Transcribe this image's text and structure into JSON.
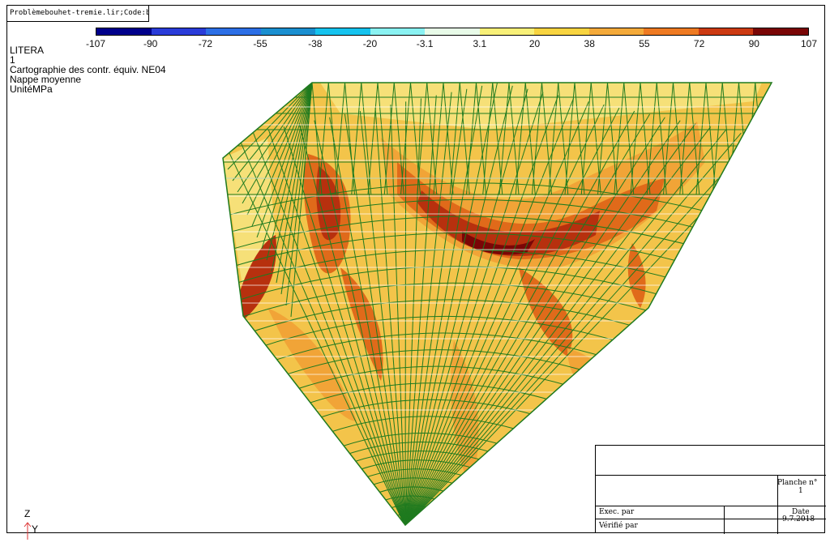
{
  "header": {
    "file_title": "Problèmebouhet-tremie.lir;Code:bourgogne-tremiecr"
  },
  "legend": {
    "colors": [
      "#00008b",
      "#2a3cd9",
      "#2c6fe6",
      "#1a8fd0",
      "#16c3ee",
      "#8af2f2",
      "#e8fbe8",
      "#f8f078",
      "#f8d440",
      "#f4aa3a",
      "#ee7a22",
      "#cc3a12",
      "#7a0606"
    ],
    "ticks": [
      "-107",
      "-90",
      "-72",
      "-55",
      "-38",
      "-20",
      "-3.1",
      "3.1",
      "20",
      "38",
      "55",
      "72",
      "90",
      "107"
    ]
  },
  "info": {
    "line1": "LITERA",
    "line2": "1",
    "line3": "Cartographie des contr. équiv. NE04",
    "line4": "Nappe moyenne",
    "line5": "UnitéMPa"
  },
  "cartouche": {
    "planche_label": "Planche n°",
    "planche_value": "1",
    "exec_label": "Exec. par",
    "verifie_label": "Vérifié par",
    "date_label": "Date",
    "date_value": "9.7.2018"
  },
  "axes": {
    "z_label": "Z",
    "y_label": "Y"
  },
  "colors": {
    "mesh": "#1f7a1f",
    "base_fill": "#f3c44a",
    "light_fill": "#f6e078",
    "mid_fill": "#f1a437",
    "hot_fill": "#e06a1a",
    "hotter_fill": "#b7300e",
    "max_fill": "#7a0606"
  }
}
